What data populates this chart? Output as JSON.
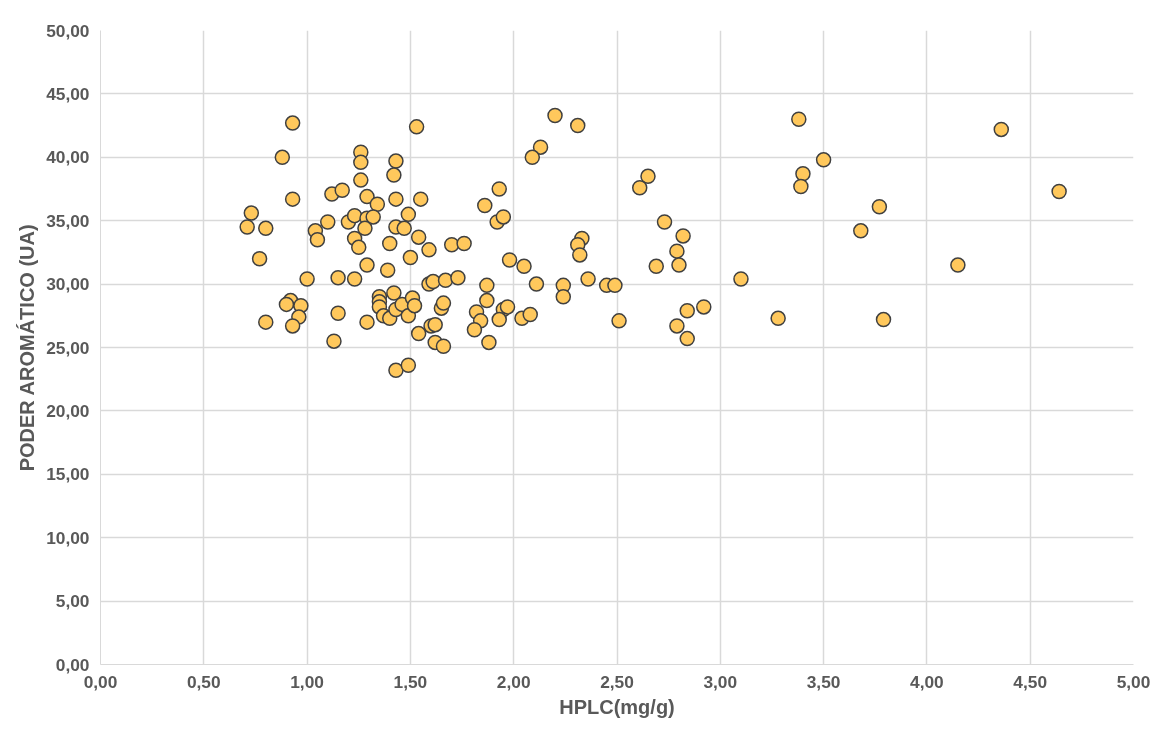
{
  "chart_data": {
    "type": "scatter",
    "xlabel": "HPLC(mg/g)",
    "ylabel": "PODER AROMÁTICO (UA)",
    "xlim": [
      0,
      5
    ],
    "ylim": [
      0,
      50
    ],
    "xticks": [
      {
        "value": 0,
        "label": "0,00"
      },
      {
        "value": 0.5,
        "label": "0,50"
      },
      {
        "value": 1,
        "label": "1,00"
      },
      {
        "value": 1.5,
        "label": "1,50"
      },
      {
        "value": 2,
        "label": "2,00"
      },
      {
        "value": 2.5,
        "label": "2,50"
      },
      {
        "value": 3,
        "label": "3,00"
      },
      {
        "value": 3.5,
        "label": "3,50"
      },
      {
        "value": 4,
        "label": "4,00"
      },
      {
        "value": 4.5,
        "label": "4,50"
      },
      {
        "value": 5,
        "label": "5,00"
      }
    ],
    "yticks": [
      {
        "value": 0,
        "label": "0,00"
      },
      {
        "value": 5,
        "label": "5,00"
      },
      {
        "value": 10,
        "label": "10,00"
      },
      {
        "value": 15,
        "label": "15,00"
      },
      {
        "value": 20,
        "label": "20,00"
      },
      {
        "value": 25,
        "label": "25,00"
      },
      {
        "value": 30,
        "label": "30,00"
      },
      {
        "value": 35,
        "label": "35,00"
      },
      {
        "value": 40,
        "label": "40,00"
      },
      {
        "value": 45,
        "label": "45,00"
      },
      {
        "value": 50,
        "label": "50,00"
      }
    ],
    "grid": true,
    "marker": "circle",
    "series": [
      {
        "color": "#ffc85c",
        "x": [
          0.93,
          1.53,
          0.88,
          1.26,
          1.26,
          1.43,
          1.42,
          1.26,
          0.93,
          1.12,
          1.17,
          1.29,
          1.34,
          1.43,
          1.55,
          1.93,
          1.86,
          0.73,
          0.71,
          0.8,
          1.1,
          1.04,
          1.05,
          1.2,
          1.23,
          1.29,
          1.32,
          1.28,
          1.23,
          1.25,
          1.43,
          1.47,
          1.49,
          1.54,
          1.59,
          1.4,
          1.5,
          1.7,
          1.76,
          1.92,
          1.95,
          0.77,
          1.98,
          2.05,
          2.11,
          1.0,
          1.15,
          1.23,
          1.29,
          1.39,
          1.59,
          1.61,
          1.67,
          1.73,
          1.87,
          1.87,
          0.92,
          0.9,
          0.97,
          0.96,
          0.93,
          0.8,
          1.15,
          1.13,
          1.29,
          1.35,
          1.35,
          1.35,
          1.37,
          1.4,
          1.42,
          1.43,
          1.46,
          1.49,
          1.51,
          1.52,
          1.54,
          1.6,
          1.62,
          1.62,
          1.66,
          1.65,
          1.66,
          1.82,
          1.84,
          1.81,
          1.95,
          1.97,
          1.93,
          2.04,
          2.08,
          1.88,
          1.43,
          1.49,
          2.2,
          2.31,
          2.13,
          2.09,
          2.65,
          2.61,
          2.73,
          2.82,
          2.33,
          2.31,
          2.32,
          2.79,
          2.8,
          2.69,
          2.24,
          2.24,
          2.36,
          2.45,
          2.49,
          2.51,
          2.84,
          2.92,
          2.79,
          2.84,
          3.38,
          3.5,
          3.4,
          3.39,
          3.77,
          3.68,
          3.1,
          3.28,
          3.79,
          4.15,
          4.36,
          4.64
        ],
        "values": [
          42.7,
          42.4,
          40.0,
          40.4,
          39.6,
          39.7,
          38.6,
          38.2,
          36.7,
          37.1,
          37.4,
          36.9,
          36.3,
          36.7,
          36.7,
          37.5,
          36.2,
          35.6,
          34.5,
          34.4,
          34.9,
          34.2,
          33.5,
          34.9,
          35.4,
          35.2,
          35.3,
          34.4,
          33.6,
          32.9,
          34.5,
          34.4,
          35.5,
          33.7,
          32.7,
          33.2,
          32.1,
          33.1,
          33.2,
          34.9,
          35.3,
          32.0,
          31.9,
          31.4,
          30.0,
          30.4,
          30.5,
          30.4,
          31.5,
          31.1,
          30.0,
          30.2,
          30.3,
          30.5,
          29.9,
          28.7,
          28.7,
          28.4,
          28.3,
          27.4,
          26.7,
          27.0,
          27.7,
          25.5,
          27.0,
          29.0,
          28.6,
          28.2,
          27.5,
          27.3,
          29.3,
          28.0,
          28.4,
          27.5,
          28.9,
          28.3,
          26.1,
          26.7,
          26.8,
          25.4,
          25.1,
          28.1,
          28.5,
          27.8,
          27.1,
          26.4,
          28.0,
          28.2,
          27.2,
          27.3,
          27.6,
          25.4,
          23.2,
          23.6,
          43.3,
          42.5,
          40.8,
          40.0,
          38.5,
          37.6,
          34.9,
          33.8,
          33.6,
          33.1,
          32.3,
          32.6,
          31.5,
          31.4,
          29.9,
          29.0,
          30.4,
          29.9,
          29.9,
          27.1,
          27.9,
          28.2,
          26.7,
          25.7,
          43.0,
          39.8,
          38.7,
          37.7,
          36.1,
          34.2,
          30.4,
          27.3,
          27.2,
          31.5,
          42.2,
          37.3
        ]
      }
    ]
  }
}
